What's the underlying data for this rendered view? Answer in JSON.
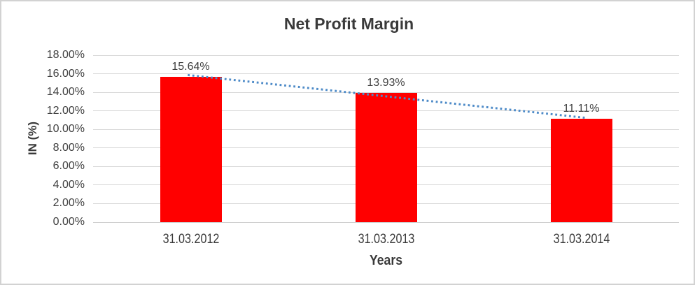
{
  "chart_data": {
    "type": "bar",
    "title": "Net Profit Margin",
    "xlabel": "Years",
    "ylabel": "IN (%)",
    "categories": [
      "31.03.2012",
      "31.03.2013",
      "31.03.2014"
    ],
    "values": [
      15.64,
      13.93,
      11.11
    ],
    "data_labels": [
      "15.64%",
      "13.93%",
      "11.11%"
    ],
    "ytick_labels": [
      "18.00%",
      "16.00%",
      "14.00%",
      "12.00%",
      "10.00%",
      "8.00%",
      "6.00%",
      "4.00%",
      "2.00%",
      "0.00%"
    ],
    "ylim": [
      0,
      18
    ],
    "ytick_step": 2,
    "grid": "horizontal",
    "legend": "none",
    "trendline": {
      "type": "linear",
      "style": "dotted",
      "series": "values"
    },
    "colors": {
      "bar": "#ff0000",
      "trendline": "#4e8bc8",
      "gridline": "#d9d9d9",
      "text": "#404040",
      "title_text": "#3a3a3a",
      "border": "#d2d2d2",
      "background": "#ffffff"
    }
  }
}
